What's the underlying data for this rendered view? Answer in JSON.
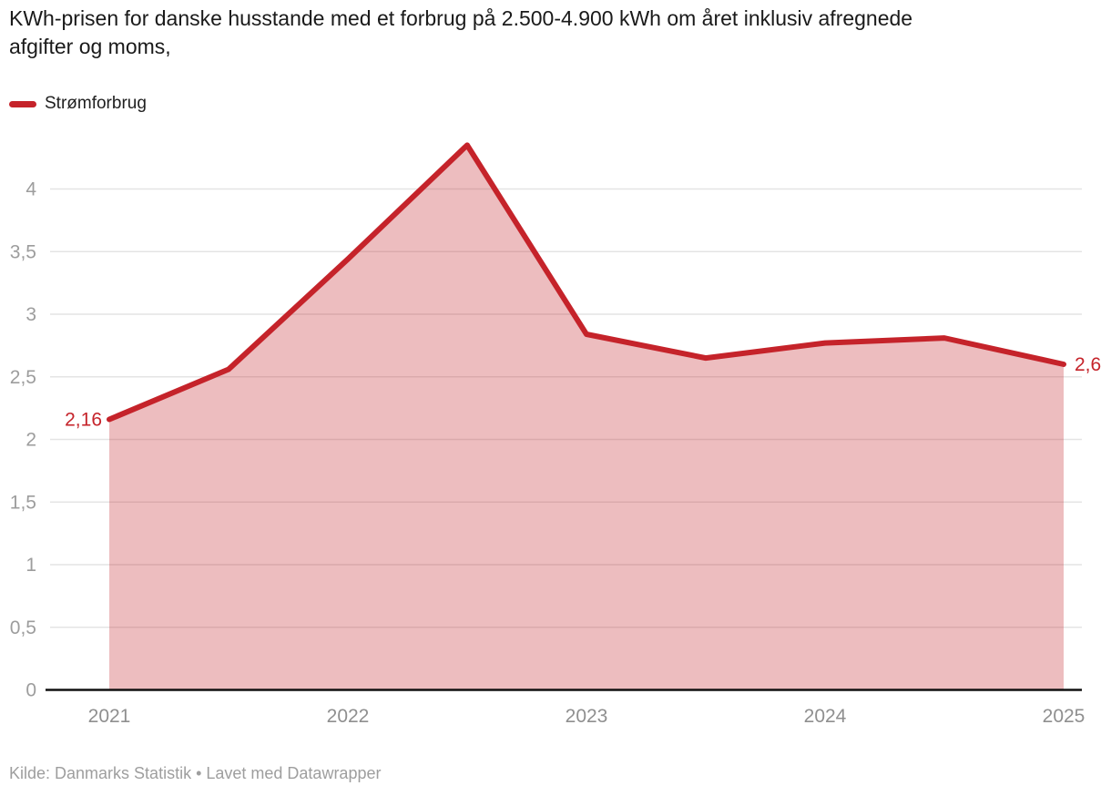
{
  "title": {
    "line1": "KWh-prisen for danske husstande med et forbrug på 2.500-4.900 kWh om året inklusiv afregnede",
    "line2": "afgifter og moms,"
  },
  "legend": {
    "label": "Strømforbrug"
  },
  "footer": "Kilde: Danmarks Statistik • Lavet med Datawrapper",
  "colors": {
    "line": "#c5232a",
    "area_fill": "rgba(197,35,42,0.30)",
    "gridline": "#e4e4e4",
    "baseline": "#111111",
    "axis_text": "#9d9d9d",
    "title_text": "#1a1a1a",
    "footer_text": "#9e9e9e"
  },
  "chart_data": {
    "type": "area",
    "title": "KWh-prisen for danske husstande med et forbrug på 2.500-4.900 kWh om året inklusiv afregnede afgifter og moms,",
    "xlabel": "",
    "ylabel": "",
    "x": [
      2021,
      2021.5,
      2022,
      2022.5,
      2023,
      2023.5,
      2024,
      2024.5,
      2025
    ],
    "series": [
      {
        "name": "Strømforbrug",
        "values": [
          2.16,
          2.56,
          3.44,
          4.35,
          2.84,
          2.65,
          2.77,
          2.81,
          2.6
        ]
      }
    ],
    "ylim": [
      0,
      4.4
    ],
    "xlim": [
      2021,
      2025
    ],
    "grid": true,
    "legend_position": "top-left",
    "y_ticks": [
      0,
      0.5,
      1,
      1.5,
      2,
      2.5,
      3,
      3.5,
      4
    ],
    "y_tick_labels": [
      "0",
      "0,5",
      "1",
      "1,5",
      "2",
      "2,5",
      "3",
      "3,5",
      "4"
    ],
    "x_ticks": [
      2021,
      2022,
      2023,
      2024,
      2025
    ],
    "x_tick_labels": [
      "2021",
      "2022",
      "2023",
      "2024",
      "2025"
    ],
    "point_labels": {
      "first": "2,16",
      "last": "2,6"
    }
  }
}
